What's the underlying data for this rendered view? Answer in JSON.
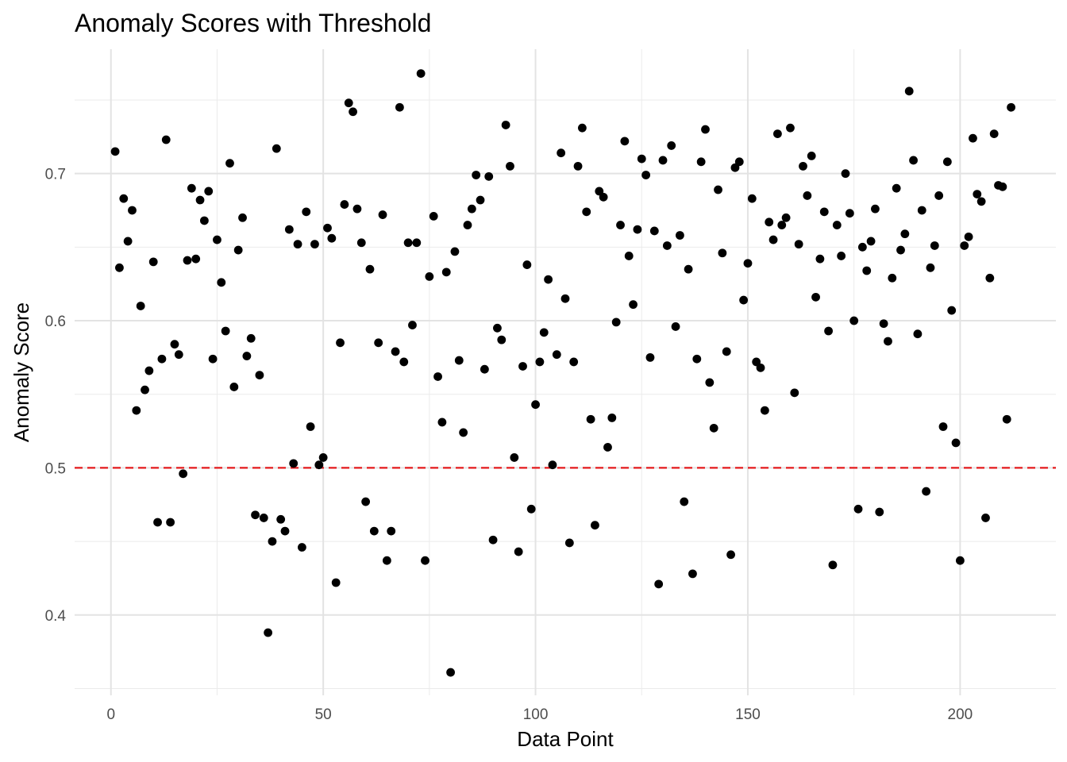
{
  "chart_data": {
    "type": "scatter",
    "title": "Anomaly Scores with Threshold",
    "xlabel": "Data Point",
    "ylabel": "Anomaly Score",
    "xlim": [
      -8.55,
      222.55
    ],
    "ylim": [
      0.3454,
      0.7845
    ],
    "x_ticks": [
      0,
      50,
      100,
      150,
      200
    ],
    "x_tick_labels": [
      "0",
      "50",
      "100",
      "150",
      "200"
    ],
    "y_ticks": [
      0.4,
      0.5,
      0.6,
      0.7
    ],
    "y_tick_labels": [
      "0.4",
      "0.5",
      "0.6",
      "0.7"
    ],
    "grid": true,
    "legend": "none",
    "threshold": {
      "value": 0.5,
      "color": "#e41a1c",
      "style": "dashed"
    },
    "point_color": "#000000",
    "x": [
      1,
      2,
      3,
      4,
      5,
      6,
      7,
      8,
      9,
      10,
      11,
      12,
      13,
      14,
      15,
      16,
      17,
      18,
      19,
      20,
      21,
      22,
      23,
      24,
      25,
      26,
      27,
      28,
      29,
      30,
      31,
      32,
      33,
      34,
      35,
      36,
      37,
      38,
      39,
      40,
      41,
      42,
      43,
      44,
      45,
      46,
      47,
      48,
      49,
      50,
      51,
      52,
      53,
      54,
      55,
      56,
      57,
      58,
      59,
      60,
      61,
      62,
      63,
      64,
      65,
      66,
      67,
      68,
      69,
      70,
      71,
      72,
      73,
      74,
      75,
      76,
      77,
      78,
      79,
      80,
      81,
      82,
      83,
      84,
      85,
      86,
      87,
      88,
      89,
      90,
      91,
      92,
      93,
      94,
      95,
      96,
      97,
      98,
      99,
      100,
      101,
      102,
      103,
      104,
      105,
      106,
      107,
      108,
      109,
      110,
      111,
      112,
      113,
      114,
      115,
      116,
      117,
      118,
      119,
      120,
      121,
      122,
      123,
      124,
      125,
      126,
      127,
      128,
      129,
      130,
      131,
      132,
      133,
      134,
      135,
      136,
      137,
      138,
      139,
      140,
      141,
      142,
      143,
      144,
      145,
      146,
      147,
      148,
      149,
      150,
      151,
      152,
      153,
      154,
      155,
      156,
      157,
      158,
      159,
      160,
      161,
      162,
      163,
      164,
      165,
      166,
      167,
      168,
      169,
      170,
      171,
      172,
      173,
      174,
      175,
      176,
      177,
      178,
      179,
      180,
      181,
      182,
      183,
      184,
      185,
      186,
      187,
      188,
      189,
      190,
      191,
      192,
      193,
      194,
      195,
      196,
      197,
      198,
      199,
      200,
      201,
      202,
      203,
      204,
      205,
      206,
      207,
      208,
      209,
      210,
      211,
      212
    ],
    "y": [
      0.715,
      0.636,
      0.683,
      0.654,
      0.675,
      0.539,
      0.61,
      0.553,
      0.566,
      0.64,
      0.463,
      0.574,
      0.723,
      0.463,
      0.584,
      0.577,
      0.496,
      0.641,
      0.69,
      0.642,
      0.682,
      0.668,
      0.688,
      0.574,
      0.655,
      0.626,
      0.593,
      0.707,
      0.555,
      0.648,
      0.67,
      0.576,
      0.588,
      0.468,
      0.563,
      0.466,
      0.388,
      0.45,
      0.717,
      0.465,
      0.457,
      0.662,
      0.503,
      0.652,
      0.446,
      0.674,
      0.528,
      0.652,
      0.502,
      0.507,
      0.663,
      0.656,
      0.422,
      0.585,
      0.679,
      0.748,
      0.742,
      0.676,
      0.653,
      0.477,
      0.635,
      0.457,
      0.585,
      0.672,
      0.437,
      0.457,
      0.579,
      0.745,
      0.572,
      0.653,
      0.597,
      0.653,
      0.768,
      0.437,
      0.63,
      0.671,
      0.562,
      0.531,
      0.633,
      0.361,
      0.647,
      0.573,
      0.524,
      0.665,
      0.676,
      0.699,
      0.682,
      0.567,
      0.698,
      0.451,
      0.595,
      0.587,
      0.733,
      0.705,
      0.507,
      0.443,
      0.569,
      0.638,
      0.472,
      0.543,
      0.572,
      0.592,
      0.628,
      0.502,
      0.577,
      0.714,
      0.615,
      0.449,
      0.572,
      0.705,
      0.731,
      0.674,
      0.533,
      0.461,
      0.688,
      0.684,
      0.514,
      0.534,
      0.599,
      0.665,
      0.722,
      0.644,
      0.611,
      0.662,
      0.71,
      0.699,
      0.575,
      0.661,
      0.421,
      0.709,
      0.651,
      0.719,
      0.596,
      0.658,
      0.477,
      0.635,
      0.428,
      0.574,
      0.708,
      0.73,
      0.558,
      0.527,
      0.689,
      0.646,
      0.579,
      0.441,
      0.704,
      0.708,
      0.614,
      0.639,
      0.683,
      0.572,
      0.568,
      0.539,
      0.667,
      0.655,
      0.727,
      0.665,
      0.67,
      0.731,
      0.551,
      0.652,
      0.705,
      0.685,
      0.712,
      0.616,
      0.642,
      0.674,
      0.593,
      0.434,
      0.665,
      0.644,
      0.7,
      0.673,
      0.6,
      0.472,
      0.65,
      0.634,
      0.654,
      0.676,
      0.47,
      0.598,
      0.586,
      0.629,
      0.69,
      0.648,
      0.659,
      0.756,
      0.709,
      0.591,
      0.675,
      0.484,
      0.636,
      0.651,
      0.685,
      0.528,
      0.708,
      0.607,
      0.517,
      0.437,
      0.651,
      0.657,
      0.724,
      0.686,
      0.681,
      0.466,
      0.629,
      0.727,
      0.692,
      0.691,
      0.533,
      0.745
    ]
  }
}
